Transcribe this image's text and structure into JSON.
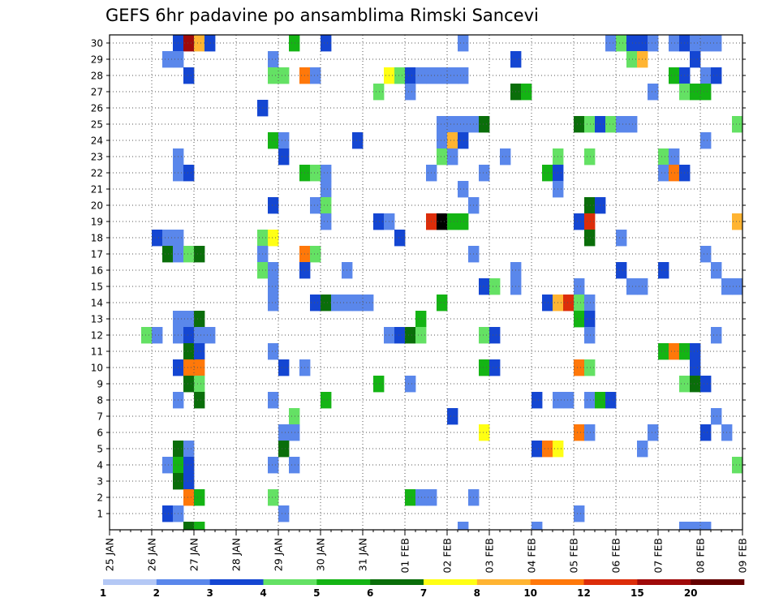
{
  "chart_data": {
    "type": "heatmap",
    "title": "GEFS 6hr padavine po ansamblima Rimski Sancevi",
    "x_tick_labels": [
      "25 JAN",
      "26 JAN",
      "27 JAN",
      "28 JAN",
      "29 JAN",
      "30 JAN",
      "31 JAN",
      "01 FEB",
      "02 FEB",
      "03 FEB",
      "04 FEB",
      "05 FEB",
      "06 FEB",
      "07 FEB",
      "08 FEB",
      "09 FEB"
    ],
    "x_range_steps": [
      0,
      60
    ],
    "y_tick_labels": [
      "1",
      "2",
      "3",
      "4",
      "5",
      "6",
      "7",
      "8",
      "9",
      "10",
      "11",
      "12",
      "13",
      "14",
      "15",
      "16",
      "17",
      "18",
      "19",
      "20",
      "21",
      "22",
      "23",
      "24",
      "25",
      "26",
      "27",
      "28",
      "29",
      "30"
    ],
    "y_range": [
      0,
      30
    ],
    "legend": {
      "labels": [
        "1",
        "2",
        "3",
        "4",
        "5",
        "6",
        "7",
        "8",
        "10",
        "12",
        "15",
        "20"
      ],
      "colors": [
        "#b4c8f5",
        "#5a87eb",
        "#1446d2",
        "#64e164",
        "#14b414",
        "#0a6e0a",
        "#ffff14",
        "#ffb432",
        "#ff780a",
        "#dc2d0a",
        "#a00a0a",
        "#640000"
      ]
    },
    "cells": [
      [
        6,
        30,
        2
      ],
      [
        7,
        30,
        10
      ],
      [
        8,
        30,
        7
      ],
      [
        9,
        30,
        2
      ],
      [
        17,
        30,
        4
      ],
      [
        20,
        30,
        2
      ],
      [
        33,
        30,
        1
      ],
      [
        47,
        30,
        1
      ],
      [
        48,
        30,
        3
      ],
      [
        49,
        30,
        2
      ],
      [
        50,
        30,
        2
      ],
      [
        51,
        30,
        1
      ],
      [
        53,
        30,
        1
      ],
      [
        54,
        30,
        2
      ],
      [
        55,
        30,
        1
      ],
      [
        56,
        30,
        1
      ],
      [
        57,
        30,
        1
      ],
      [
        5,
        29,
        1
      ],
      [
        6,
        29,
        1
      ],
      [
        15,
        29,
        1
      ],
      [
        38,
        29,
        2
      ],
      [
        49,
        29,
        3
      ],
      [
        50,
        29,
        7
      ],
      [
        55,
        29,
        2
      ],
      [
        7,
        28,
        2
      ],
      [
        15,
        28,
        3
      ],
      [
        16,
        28,
        3
      ],
      [
        18,
        28,
        8
      ],
      [
        19,
        28,
        1
      ],
      [
        26,
        28,
        6
      ],
      [
        27,
        28,
        3
      ],
      [
        28,
        28,
        2
      ],
      [
        29,
        28,
        1
      ],
      [
        30,
        28,
        1
      ],
      [
        31,
        28,
        1
      ],
      [
        32,
        28,
        1
      ],
      [
        33,
        28,
        1
      ],
      [
        53,
        28,
        4
      ],
      [
        54,
        28,
        2
      ],
      [
        56,
        28,
        1
      ],
      [
        57,
        28,
        2
      ],
      [
        25,
        27,
        3
      ],
      [
        28,
        27,
        1
      ],
      [
        38,
        27,
        5
      ],
      [
        39,
        27,
        4
      ],
      [
        51,
        27,
        1
      ],
      [
        54,
        27,
        3
      ],
      [
        55,
        27,
        4
      ],
      [
        56,
        27,
        4
      ],
      [
        14,
        26,
        2
      ],
      [
        31,
        25,
        1
      ],
      [
        32,
        25,
        1
      ],
      [
        33,
        25,
        1
      ],
      [
        34,
        25,
        1
      ],
      [
        35,
        25,
        5
      ],
      [
        44,
        25,
        5
      ],
      [
        45,
        25,
        3
      ],
      [
        46,
        25,
        2
      ],
      [
        47,
        25,
        3
      ],
      [
        48,
        25,
        1
      ],
      [
        49,
        25,
        1
      ],
      [
        59,
        25,
        3
      ],
      [
        15,
        24,
        4
      ],
      [
        16,
        24,
        1
      ],
      [
        23,
        24,
        2
      ],
      [
        31,
        24,
        1
      ],
      [
        32,
        24,
        7
      ],
      [
        33,
        24,
        2
      ],
      [
        56,
        24,
        1
      ],
      [
        6,
        23,
        1
      ],
      [
        16,
        23,
        2
      ],
      [
        31,
        23,
        3
      ],
      [
        32,
        23,
        1
      ],
      [
        37,
        23,
        1
      ],
      [
        42,
        23,
        3
      ],
      [
        45,
        23,
        3
      ],
      [
        52,
        23,
        3
      ],
      [
        53,
        23,
        1
      ],
      [
        6,
        22,
        1
      ],
      [
        7,
        22,
        2
      ],
      [
        18,
        22,
        4
      ],
      [
        19,
        22,
        3
      ],
      [
        20,
        22,
        1
      ],
      [
        30,
        22,
        1
      ],
      [
        35,
        22,
        1
      ],
      [
        41,
        22,
        4
      ],
      [
        42,
        22,
        2
      ],
      [
        52,
        22,
        1
      ],
      [
        53,
        22,
        8
      ],
      [
        54,
        22,
        2
      ],
      [
        20,
        21,
        1
      ],
      [
        33,
        21,
        1
      ],
      [
        42,
        21,
        1
      ],
      [
        15,
        20,
        2
      ],
      [
        19,
        20,
        1
      ],
      [
        20,
        20,
        3
      ],
      [
        34,
        20,
        1
      ],
      [
        45,
        20,
        5
      ],
      [
        46,
        20,
        2
      ],
      [
        20,
        19,
        1
      ],
      [
        25,
        19,
        2
      ],
      [
        26,
        19,
        1
      ],
      [
        30,
        19,
        9
      ],
      [
        31,
        19,
        12
      ],
      [
        32,
        19,
        4
      ],
      [
        33,
        19,
        4
      ],
      [
        44,
        19,
        2
      ],
      [
        45,
        19,
        9
      ],
      [
        59,
        19,
        7
      ],
      [
        4,
        18,
        2
      ],
      [
        5,
        18,
        1
      ],
      [
        6,
        18,
        1
      ],
      [
        14,
        18,
        3
      ],
      [
        15,
        18,
        6
      ],
      [
        27,
        18,
        2
      ],
      [
        45,
        18,
        5
      ],
      [
        48,
        18,
        1
      ],
      [
        5,
        17,
        5
      ],
      [
        6,
        17,
        1
      ],
      [
        7,
        17,
        3
      ],
      [
        8,
        17,
        5
      ],
      [
        14,
        17,
        1
      ],
      [
        18,
        17,
        8
      ],
      [
        19,
        17,
        3
      ],
      [
        34,
        17,
        1
      ],
      [
        56,
        17,
        1
      ],
      [
        14,
        16,
        3
      ],
      [
        15,
        16,
        1
      ],
      [
        18,
        16,
        2
      ],
      [
        22,
        16,
        1
      ],
      [
        38,
        16,
        1
      ],
      [
        48,
        16,
        2
      ],
      [
        52,
        16,
        2
      ],
      [
        57,
        16,
        1
      ],
      [
        15,
        15,
        1
      ],
      [
        35,
        15,
        2
      ],
      [
        36,
        15,
        3
      ],
      [
        38,
        15,
        1
      ],
      [
        44,
        15,
        1
      ],
      [
        49,
        15,
        1
      ],
      [
        50,
        15,
        1
      ],
      [
        58,
        15,
        1
      ],
      [
        59,
        15,
        1
      ],
      [
        15,
        14,
        1
      ],
      [
        19,
        14,
        2
      ],
      [
        20,
        14,
        5
      ],
      [
        21,
        14,
        1
      ],
      [
        22,
        14,
        1
      ],
      [
        23,
        14,
        1
      ],
      [
        24,
        14,
        1
      ],
      [
        31,
        14,
        4
      ],
      [
        41,
        14,
        2
      ],
      [
        42,
        14,
        7
      ],
      [
        43,
        14,
        9
      ],
      [
        44,
        14,
        3
      ],
      [
        45,
        14,
        1
      ],
      [
        6,
        13,
        1
      ],
      [
        7,
        13,
        1
      ],
      [
        8,
        13,
        5
      ],
      [
        29,
        13,
        4
      ],
      [
        44,
        13,
        4
      ],
      [
        45,
        13,
        2
      ],
      [
        3,
        12,
        3
      ],
      [
        4,
        12,
        1
      ],
      [
        6,
        12,
        1
      ],
      [
        7,
        12,
        2
      ],
      [
        8,
        12,
        1
      ],
      [
        9,
        12,
        1
      ],
      [
        26,
        12,
        1
      ],
      [
        27,
        12,
        2
      ],
      [
        28,
        12,
        5
      ],
      [
        29,
        12,
        3
      ],
      [
        35,
        12,
        3
      ],
      [
        36,
        12,
        2
      ],
      [
        45,
        12,
        1
      ],
      [
        57,
        12,
        1
      ],
      [
        7,
        11,
        5
      ],
      [
        8,
        11,
        2
      ],
      [
        15,
        11,
        1
      ],
      [
        52,
        11,
        4
      ],
      [
        53,
        11,
        8
      ],
      [
        54,
        11,
        4
      ],
      [
        55,
        11,
        2
      ],
      [
        6,
        10,
        2
      ],
      [
        7,
        10,
        8
      ],
      [
        8,
        10,
        8
      ],
      [
        16,
        10,
        2
      ],
      [
        18,
        10,
        1
      ],
      [
        35,
        10,
        4
      ],
      [
        36,
        10,
        2
      ],
      [
        44,
        10,
        8
      ],
      [
        45,
        10,
        3
      ],
      [
        55,
        10,
        2
      ],
      [
        7,
        9,
        5
      ],
      [
        8,
        9,
        3
      ],
      [
        25,
        9,
        4
      ],
      [
        28,
        9,
        1
      ],
      [
        54,
        9,
        3
      ],
      [
        55,
        9,
        5
      ],
      [
        56,
        9,
        2
      ],
      [
        6,
        8,
        1
      ],
      [
        8,
        8,
        5
      ],
      [
        15,
        8,
        1
      ],
      [
        20,
        8,
        4
      ],
      [
        40,
        8,
        2
      ],
      [
        42,
        8,
        1
      ],
      [
        43,
        8,
        1
      ],
      [
        45,
        8,
        1
      ],
      [
        46,
        8,
        4
      ],
      [
        47,
        8,
        2
      ],
      [
        17,
        7,
        3
      ],
      [
        32,
        7,
        2
      ],
      [
        57,
        7,
        1
      ],
      [
        16,
        6,
        1
      ],
      [
        17,
        6,
        1
      ],
      [
        35,
        6,
        6
      ],
      [
        44,
        6,
        8
      ],
      [
        45,
        6,
        1
      ],
      [
        51,
        6,
        1
      ],
      [
        56,
        6,
        2
      ],
      [
        58,
        6,
        1
      ],
      [
        6,
        5,
        5
      ],
      [
        7,
        5,
        1
      ],
      [
        16,
        5,
        5
      ],
      [
        40,
        5,
        2
      ],
      [
        41,
        5,
        8
      ],
      [
        42,
        5,
        6
      ],
      [
        50,
        5,
        1
      ],
      [
        5,
        4,
        1
      ],
      [
        6,
        4,
        4
      ],
      [
        7,
        4,
        2
      ],
      [
        15,
        4,
        1
      ],
      [
        17,
        4,
        1
      ],
      [
        59,
        4,
        3
      ],
      [
        6,
        3,
        5
      ],
      [
        7,
        3,
        2
      ],
      [
        7,
        2,
        8
      ],
      [
        8,
        2,
        4
      ],
      [
        15,
        2,
        3
      ],
      [
        28,
        2,
        4
      ],
      [
        29,
        2,
        1
      ],
      [
        30,
        2,
        1
      ],
      [
        34,
        2,
        1
      ],
      [
        5,
        1,
        2
      ],
      [
        6,
        1,
        1
      ],
      [
        16,
        1,
        1
      ],
      [
        44,
        1,
        1
      ],
      [
        7,
        0,
        5
      ],
      [
        8,
        0,
        4
      ],
      [
        33,
        0,
        1
      ],
      [
        40,
        0,
        1
      ],
      [
        54,
        0,
        1
      ],
      [
        55,
        0,
        1
      ],
      [
        56,
        0,
        1
      ]
    ]
  }
}
